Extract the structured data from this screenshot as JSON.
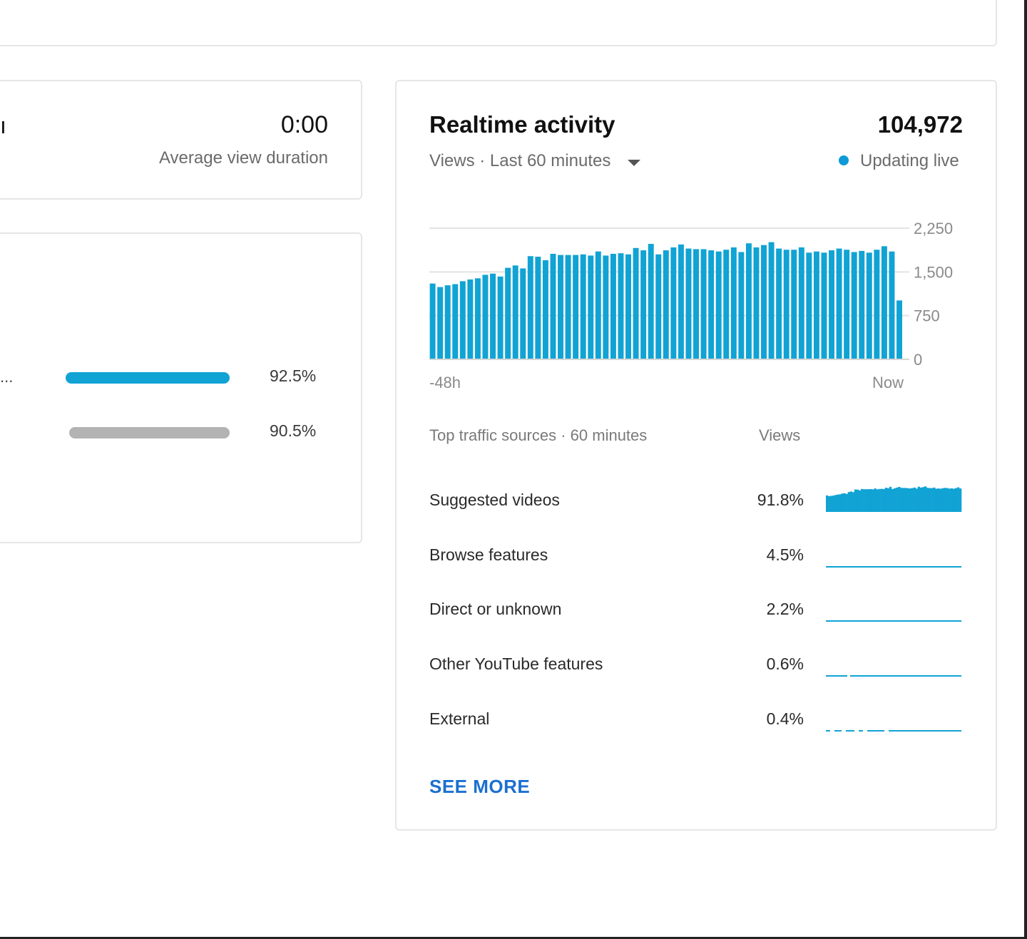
{
  "overview": {
    "partial_left_char": "ı",
    "duration_value": "0:00",
    "duration_label": "Average view duration",
    "bars": [
      {
        "label": "...",
        "percent": 92.5,
        "display": "92.5%",
        "color": "#11a3d4"
      },
      {
        "label": "",
        "percent": 90.5,
        "display": "90.5%",
        "color": "#b3b3b3"
      }
    ]
  },
  "realtime": {
    "title": "Realtime activity",
    "total": "104,972",
    "subtitle": "Views · Last 60 minutes",
    "dropdown_icon": "caret-down-icon",
    "live_label": "Updating live",
    "live_color": "#0e9ad6",
    "bar_color": "#11a3d4",
    "chart_data": {
      "type": "bar",
      "x_start_label": "-48h",
      "x_end_label": "Now",
      "y_ticks": [
        "2,250",
        "1,500",
        "750",
        "0"
      ],
      "ylim": [
        0,
        2250
      ],
      "grid": true,
      "values": [
        1300,
        1240,
        1270,
        1290,
        1340,
        1370,
        1390,
        1450,
        1470,
        1420,
        1570,
        1610,
        1560,
        1770,
        1760,
        1700,
        1810,
        1790,
        1790,
        1790,
        1800,
        1780,
        1850,
        1780,
        1810,
        1820,
        1800,
        1910,
        1870,
        1980,
        1800,
        1870,
        1920,
        1970,
        1900,
        1890,
        1890,
        1870,
        1850,
        1880,
        1920,
        1840,
        1990,
        1920,
        1960,
        2010,
        1900,
        1880,
        1880,
        1920,
        1830,
        1850,
        1830,
        1870,
        1900,
        1880,
        1840,
        1860,
        1830,
        1880,
        1940,
        1850,
        1010
      ]
    },
    "traffic_header": "Top traffic sources · 60 minutes",
    "views_header": "Views",
    "sources": [
      {
        "name": "Suggested videos",
        "pct": "91.8%",
        "spark": "bars"
      },
      {
        "name": "Browse features",
        "pct": "4.5%",
        "spark": "line"
      },
      {
        "name": "Direct or unknown",
        "pct": "2.2%",
        "spark": "line"
      },
      {
        "name": "Other YouTube features",
        "pct": "0.6%",
        "spark": "line-gap"
      },
      {
        "name": "External",
        "pct": "0.4%",
        "spark": "dashed"
      }
    ],
    "see_more": "SEE MORE"
  }
}
